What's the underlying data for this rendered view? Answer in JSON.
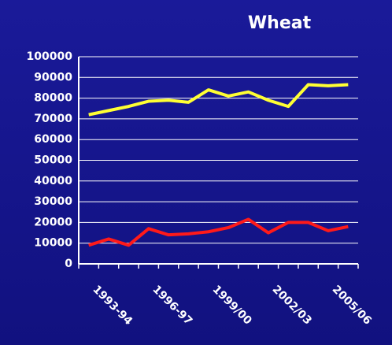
{
  "chart_data": {
    "type": "line",
    "title": "Wheat",
    "categories": [
      null,
      "1993-94",
      null,
      null,
      "1996-97",
      null,
      null,
      "1999/00",
      null,
      null,
      "2002/03",
      null,
      null,
      "2005/06"
    ],
    "series": [
      {
        "color": "#ffff33",
        "values": [
          72000,
          74000,
          76000,
          78500,
          79000,
          78000,
          84000,
          81000,
          83000,
          79000,
          76000,
          86500,
          86000,
          86500
        ]
      },
      {
        "color": "#ff1a1a",
        "values": [
          9000,
          12000,
          9000,
          17000,
          14000,
          14500,
          15500,
          17500,
          21500,
          15000,
          20000,
          20000,
          16000,
          18000
        ]
      }
    ],
    "ylim": [
      0,
      100000
    ],
    "yticks": [
      0,
      10000,
      20000,
      30000,
      40000,
      50000,
      60000,
      70000,
      80000,
      90000,
      100000
    ],
    "grid": true
  }
}
